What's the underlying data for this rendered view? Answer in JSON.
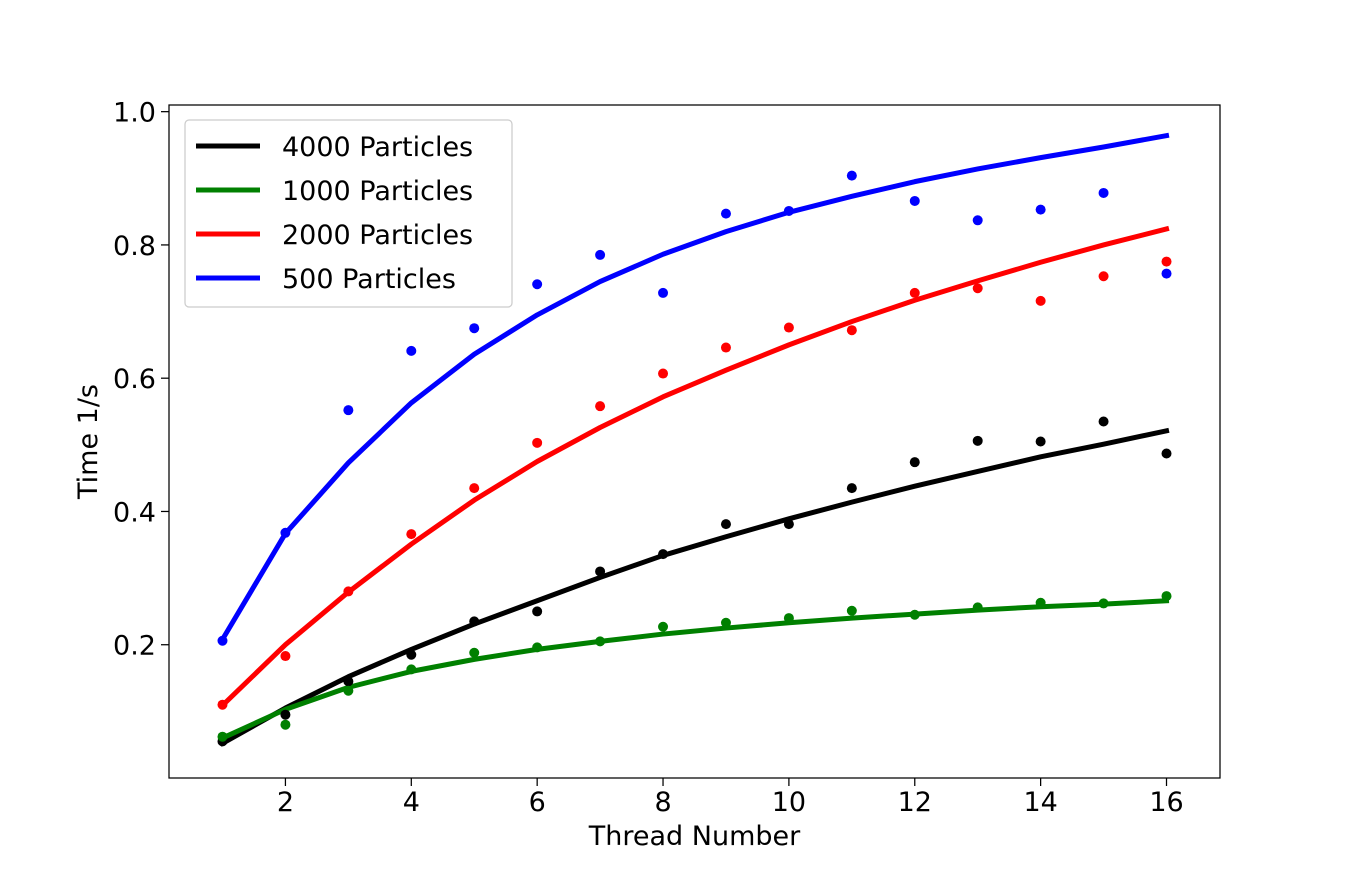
{
  "chart_data": {
    "type": "scatter",
    "title": "",
    "xlabel": "Thread Number",
    "ylabel": "Time 1/s",
    "xlim": [
      0.15,
      16.85
    ],
    "ylim": [
      0.0,
      1.01
    ],
    "xticks": [
      2,
      4,
      6,
      8,
      10,
      12,
      14,
      16
    ],
    "xtick_labels": [
      "2",
      "4",
      "6",
      "8",
      "10",
      "12",
      "14",
      "16"
    ],
    "yticks": [
      0.2,
      0.4,
      0.6,
      0.8,
      1.0
    ],
    "ytick_labels": [
      "0.2",
      "0.4",
      "0.6",
      "0.8",
      "1.0"
    ],
    "grid": false,
    "legend_position": "top-left",
    "x": [
      1,
      2,
      3,
      4,
      5,
      6,
      7,
      8,
      9,
      10,
      11,
      12,
      13,
      14,
      15,
      16
    ],
    "series": [
      {
        "name": "4000 Particles",
        "color": "#000000",
        "points": [
          0.055,
          0.095,
          0.145,
          0.185,
          0.235,
          0.25,
          0.31,
          0.336,
          0.381,
          0.381,
          0.435,
          0.474,
          0.506,
          0.505,
          0.535,
          0.487
        ],
        "fit": [
          0.052,
          0.105,
          0.152,
          0.193,
          0.231,
          0.266,
          0.301,
          0.334,
          0.362,
          0.389,
          0.414,
          0.438,
          0.46,
          0.482,
          0.501,
          0.521
        ]
      },
      {
        "name": "1000 Particles",
        "color": "#008000",
        "points": [
          0.062,
          0.08,
          0.131,
          0.163,
          0.188,
          0.196,
          0.205,
          0.227,
          0.233,
          0.24,
          0.251,
          0.245,
          0.256,
          0.263,
          0.262,
          0.273
        ],
        "fit": [
          0.06,
          0.103,
          0.136,
          0.16,
          0.178,
          0.193,
          0.205,
          0.216,
          0.225,
          0.233,
          0.24,
          0.246,
          0.252,
          0.257,
          0.261,
          0.266
        ]
      },
      {
        "name": "2000 Particles",
        "color": "#ff0000",
        "points": [
          0.11,
          0.183,
          0.28,
          0.366,
          0.435,
          0.503,
          0.558,
          0.607,
          0.646,
          0.676,
          0.672,
          0.728,
          0.735,
          0.716,
          0.753,
          0.775
        ],
        "fit": [
          0.109,
          0.2,
          0.279,
          0.351,
          0.417,
          0.475,
          0.526,
          0.572,
          0.612,
          0.65,
          0.685,
          0.717,
          0.746,
          0.774,
          0.8,
          0.824
        ]
      },
      {
        "name": "500 Particles",
        "color": "#0000ff",
        "points": [
          0.206,
          0.368,
          0.552,
          0.641,
          0.675,
          0.741,
          0.785,
          0.728,
          0.847,
          0.851,
          0.904,
          0.866,
          0.837,
          0.853,
          0.878,
          0.757
        ],
        "fit": [
          0.208,
          0.367,
          0.473,
          0.563,
          0.636,
          0.695,
          0.745,
          0.786,
          0.82,
          0.849,
          0.873,
          0.895,
          0.914,
          0.931,
          0.947,
          0.964
        ]
      }
    ]
  }
}
